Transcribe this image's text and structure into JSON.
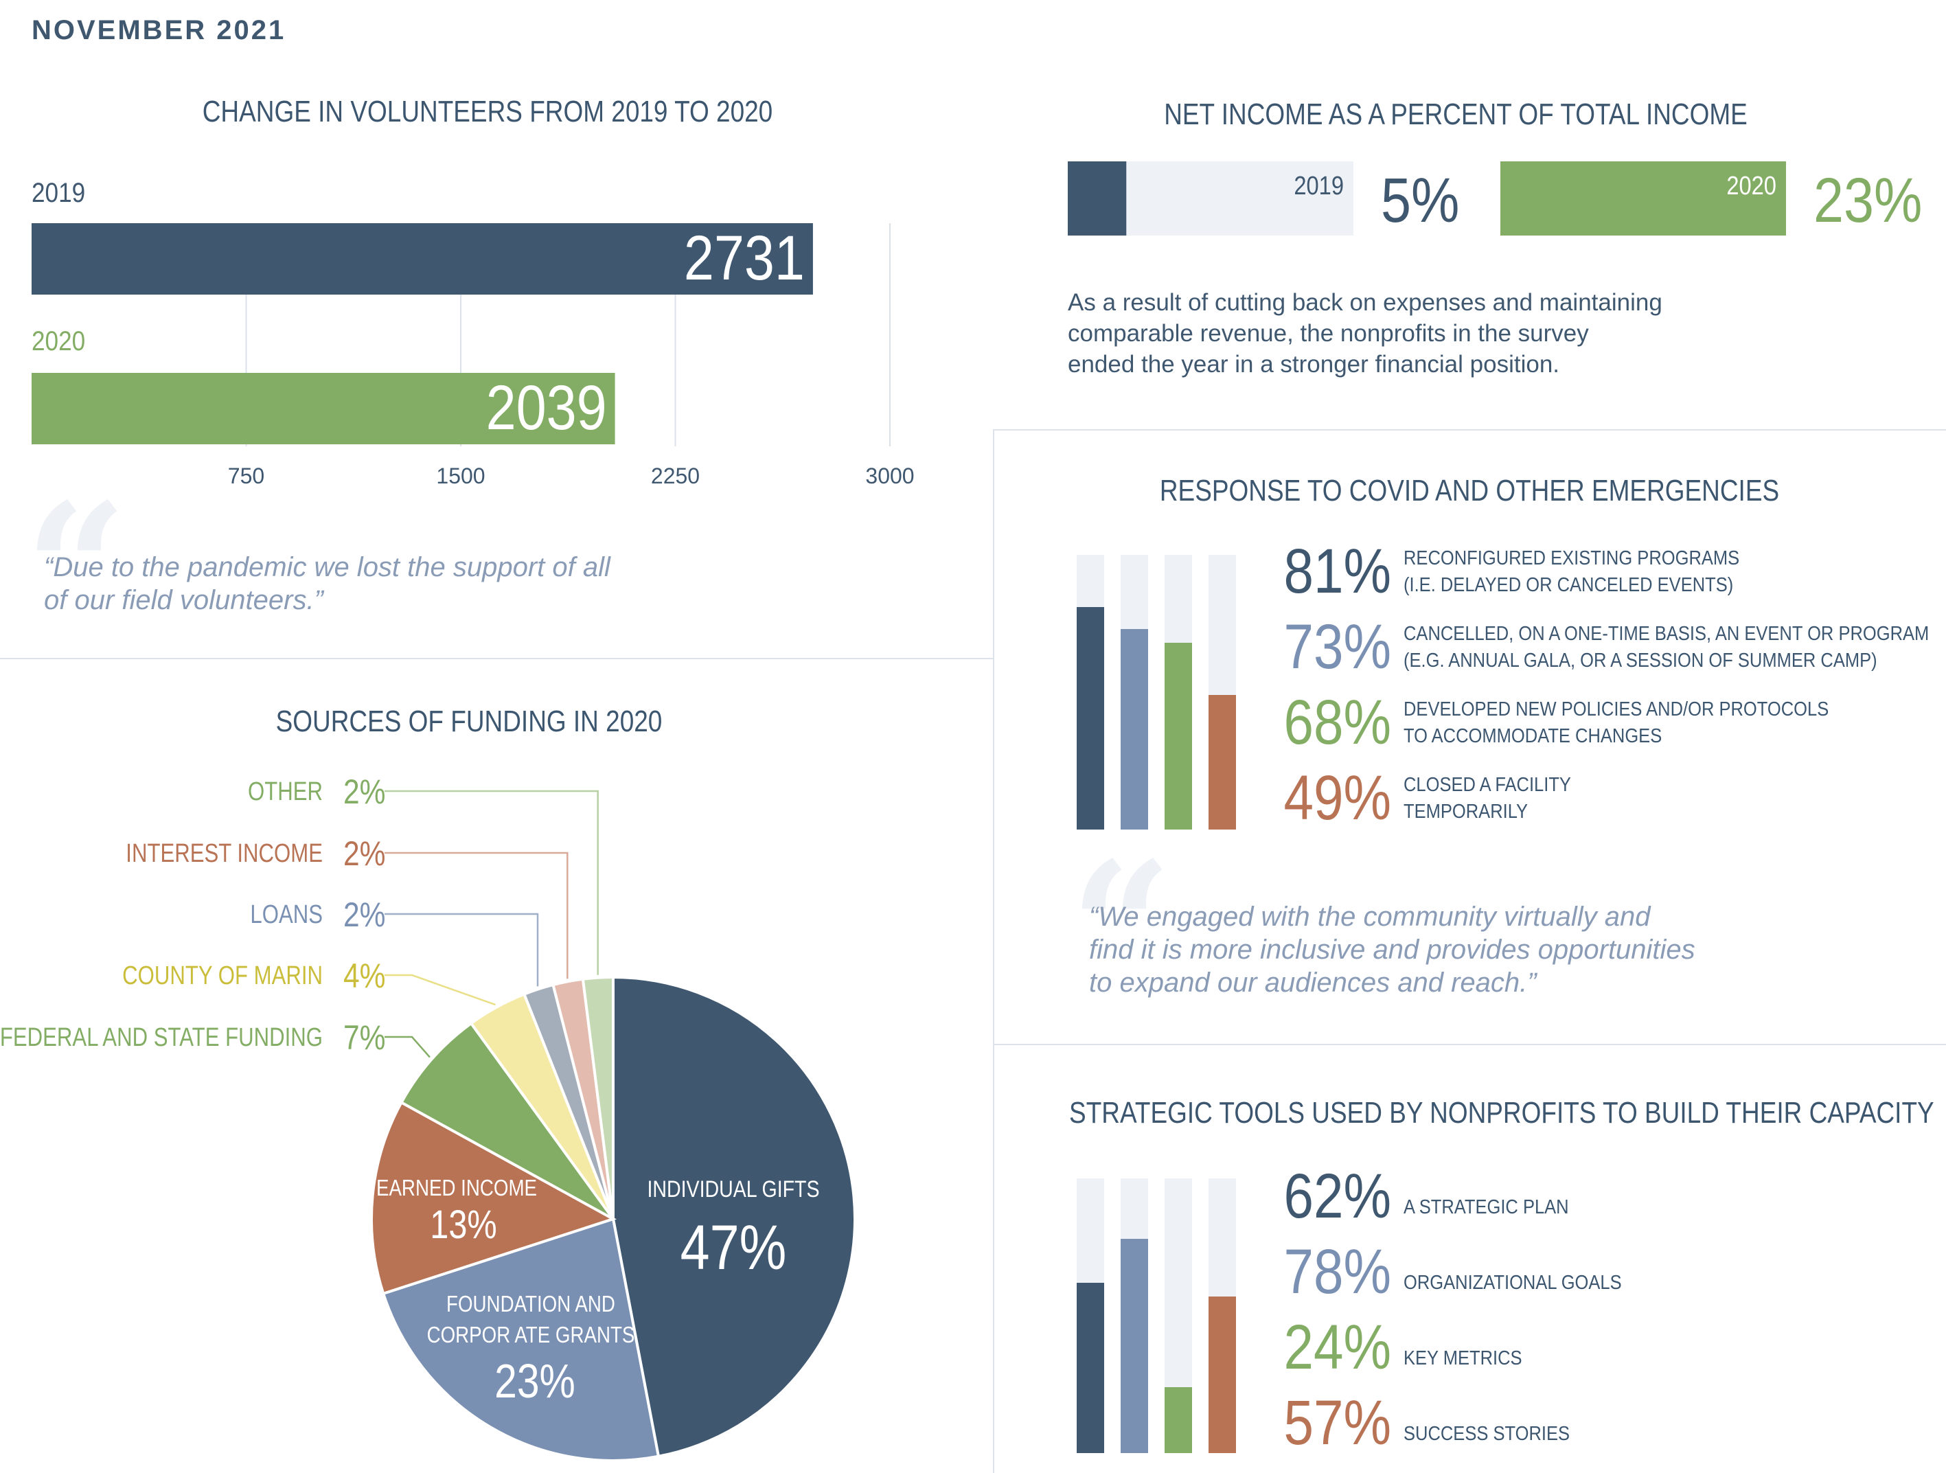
{
  "header": {
    "date": "NOVEMBER 2021"
  },
  "colors": {
    "navy": "#3f5870",
    "slate": "#7a90b3",
    "green": "#83ad64",
    "rust": "#b87355",
    "yellow": "#cabd3a",
    "light": "#eef2f7"
  },
  "volunteers": {
    "title": "CHANGE IN VOLUNTEERS FROM 2019 TO 2020",
    "quote": "“Due to the pandemic we lost the support of all of our field volunteers.”"
  },
  "net_income": {
    "title": "NET INCOME AS A PERCENT OF TOTAL INCOME",
    "note_lines": [
      "As a result of cutting back on expenses and maintaining",
      "comparable revenue, the nonprofits in the survey",
      "ended the year in a stronger financial position."
    ]
  },
  "funding": {
    "title": "SOURCES OF FUNDING IN 2020"
  },
  "covid": {
    "title": "RESPONSE TO COVID AND OTHER EMERGENCIES",
    "quote_lines": [
      "“We engaged with the community virtually and",
      "find it is more inclusive and provides opportunities",
      "to expand our audiences and reach.”"
    ]
  },
  "tools": {
    "title": "STRATEGIC TOOLS USED BY NONPROFITS TO BUILD THEIR CAPACITY"
  },
  "chart_data": [
    {
      "type": "bar",
      "orientation": "horizontal",
      "title": "CHANGE IN VOLUNTEERS FROM 2019 TO 2020",
      "categories": [
        "2019",
        "2020"
      ],
      "values": [
        2731,
        2039
      ],
      "value_labels": [
        "2731",
        "2039"
      ],
      "xlim": [
        0,
        3000
      ],
      "xticks": [
        "750",
        "1500",
        "2250",
        "3000"
      ],
      "grid": true
    },
    {
      "type": "bar",
      "title": "NET INCOME AS A PERCENT OF TOTAL INCOME",
      "categories": [
        "2019",
        "2020"
      ],
      "values": [
        5,
        23
      ],
      "value_labels": [
        "5%",
        "23%"
      ]
    },
    {
      "type": "pie",
      "title": "SOURCES OF FUNDING IN 2020",
      "slices": [
        {
          "label": "INDIVIDUAL GIFTS",
          "value": 47,
          "pct": "47%"
        },
        {
          "label_lines": [
            "FOUNDATION AND",
            "CORPOR ATE GRANTS"
          ],
          "value": 23,
          "pct": "23%"
        },
        {
          "label": "EARNED INCOME",
          "value": 13,
          "pct": "13%"
        },
        {
          "label": "FEDERAL AND STATE FUNDING",
          "value": 7,
          "pct": "7%"
        },
        {
          "label": "COUNTY OF MARIN",
          "value": 4,
          "pct": "4%"
        },
        {
          "label": "LOANS",
          "value": 2,
          "pct": "2%"
        },
        {
          "label": "INTEREST INCOME",
          "value": 2,
          "pct": "2%"
        },
        {
          "label": "OTHER",
          "value": 2,
          "pct": "2%"
        }
      ]
    },
    {
      "type": "bar",
      "title": "RESPONSE TO COVID AND OTHER EMERGENCIES",
      "items": [
        {
          "value": 81,
          "pct": "81%",
          "lines": [
            "RECONFIGURED EXISTING PROGRAMS",
            "(I.E. DELAYED OR CANCELED EVENTS)"
          ]
        },
        {
          "value": 73,
          "pct": "73%",
          "lines": [
            "CANCELLED, ON A ONE-TIME BASIS, AN EVENT OR PROGRAM",
            "(E.G. ANNUAL GALA, OR A SESSION OF SUMMER CAMP)"
          ]
        },
        {
          "value": 68,
          "pct": "68%",
          "lines": [
            "DEVELOPED NEW POLICIES AND/OR PROTOCOLS",
            "TO ACCOMMODATE CHANGES"
          ]
        },
        {
          "value": 49,
          "pct": "49%",
          "lines": [
            "CLOSED A FACILITY",
            "TEMPORARILY"
          ]
        }
      ]
    },
    {
      "type": "bar",
      "title": "STRATEGIC TOOLS USED BY NONPROFITS TO BUILD THEIR CAPACITY",
      "items": [
        {
          "value": 62,
          "pct": "62%",
          "lines": [
            "A STRATEGIC PLAN"
          ]
        },
        {
          "value": 78,
          "pct": "78%",
          "lines": [
            "ORGANIZATIONAL GOALS"
          ]
        },
        {
          "value": 24,
          "pct": "24%",
          "lines": [
            "KEY METRICS"
          ]
        },
        {
          "value": 57,
          "pct": "57%",
          "lines": [
            "SUCCESS STORIES"
          ]
        }
      ]
    }
  ]
}
